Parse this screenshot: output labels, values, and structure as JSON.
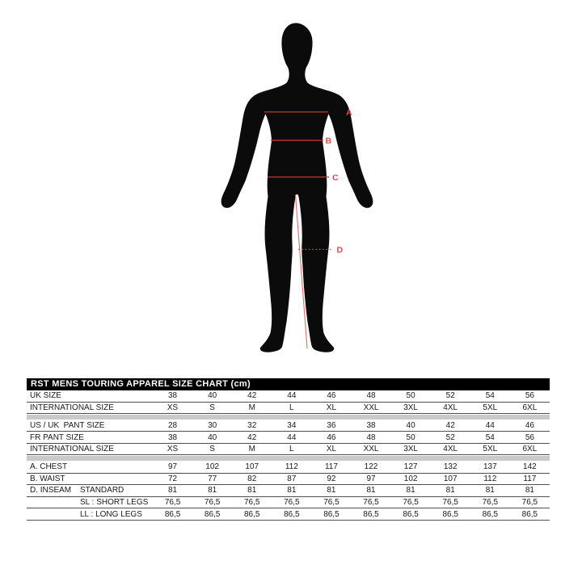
{
  "page": {
    "background": "#ffffff"
  },
  "diagram": {
    "figure": "male-body-back-silhouette",
    "silhouette_color": "#0b0b0b",
    "measure_line_color": "#bf3a3d",
    "label_color": "#e0494e",
    "inseam_line_color": "#e4696b",
    "labels": {
      "a": "A",
      "b": "B",
      "c": "C",
      "d": "D"
    }
  },
  "size_chart": {
    "title": "RST MENS TOURING APPAREL SIZE CHART (cm)",
    "title_bg": "#000000",
    "title_color": "#ffffff",
    "separator_color": "#c9c9c9",
    "rows": [
      {
        "type": "data",
        "label": "UK SIZE",
        "sub": "",
        "values": [
          "38",
          "40",
          "42",
          "44",
          "46",
          "48",
          "50",
          "52",
          "54",
          "56"
        ]
      },
      {
        "type": "data",
        "label": "INTERNATIONAL SIZE",
        "sub": "",
        "values": [
          "XS",
          "S",
          "M",
          "L",
          "XL",
          "XXL",
          "3XL",
          "4XL",
          "5XL",
          "6XL"
        ]
      },
      {
        "type": "separator"
      },
      {
        "type": "data",
        "label": "US / UK  PANT SIZE",
        "sub": "",
        "values": [
          "28",
          "30",
          "32",
          "34",
          "36",
          "38",
          "40",
          "42",
          "44",
          "46"
        ]
      },
      {
        "type": "data",
        "label": "FR PANT SIZE",
        "sub": "",
        "values": [
          "38",
          "40",
          "42",
          "44",
          "46",
          "48",
          "50",
          "52",
          "54",
          "56"
        ]
      },
      {
        "type": "data",
        "label": "INTERNATIONAL SIZE",
        "sub": "",
        "values": [
          "XS",
          "S",
          "M",
          "L",
          "XL",
          "XXL",
          "3XL",
          "4XL",
          "5XL",
          "6XL"
        ]
      },
      {
        "type": "separator"
      },
      {
        "type": "data",
        "label": "A. CHEST",
        "sub": "",
        "values": [
          "97",
          "102",
          "107",
          "112",
          "117",
          "122",
          "127",
          "132",
          "137",
          "142"
        ]
      },
      {
        "type": "data",
        "label": "B. WAIST",
        "sub": "",
        "values": [
          "72",
          "77",
          "82",
          "87",
          "92",
          "97",
          "102",
          "107",
          "112",
          "117"
        ]
      },
      {
        "type": "data",
        "label": "D. INSEAM",
        "sub": "STANDARD",
        "values": [
          "81",
          "81",
          "81",
          "81",
          "81",
          "81",
          "81",
          "81",
          "81",
          "81"
        ]
      },
      {
        "type": "data",
        "label": "",
        "sub": "SL : SHORT LEGS",
        "values": [
          "76,5",
          "76,5",
          "76,5",
          "76,5",
          "76,5",
          "76,5",
          "76,5",
          "76,5",
          "76,5",
          "76,5"
        ]
      },
      {
        "type": "data",
        "label": "",
        "sub": "LL : LONG LEGS",
        "values": [
          "86,5",
          "86,5",
          "86,5",
          "86,5",
          "86,5",
          "86,5",
          "86,5",
          "86,5",
          "86,5",
          "86,5"
        ]
      }
    ]
  }
}
